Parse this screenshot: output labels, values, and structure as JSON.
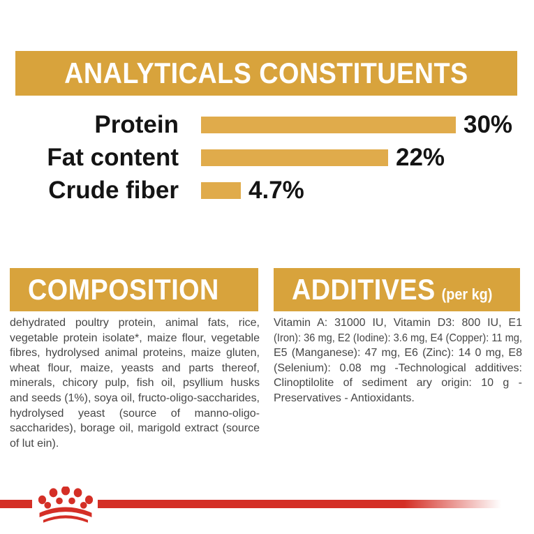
{
  "colors": {
    "banner_gold": "#D8A33C",
    "bar_gold": "#E0AB4B",
    "red": "#D42F26",
    "chart_text": "#141414",
    "body_text": "#454545",
    "banner_text": "#FFFFFF"
  },
  "header": {
    "title": "ANALYTICALS CONSTITUENTS"
  },
  "chart_data": {
    "type": "bar",
    "orientation": "horizontal",
    "title": "ANALYTICALS CONSTITUENTS",
    "categories": [
      "Protein",
      "Fat content",
      "Crude fiber"
    ],
    "values": [
      30,
      22,
      4.7
    ],
    "value_labels": [
      "30%",
      "22%",
      "4.7%"
    ],
    "unit": "%",
    "xlim": [
      0,
      30
    ],
    "grid": false,
    "legend": false,
    "bar_color": "#E0AB4B"
  },
  "composition": {
    "title": "COMPOSITION",
    "lines": [
      "dehydrated poultry protein, animal fats, rice,",
      "vegetable protein isolate*, maize flour, vegetable",
      "fibres, hydrolysed animal proteins, maize gluten,",
      "wheat flour, maize, yeasts and parts thereof,",
      "minerals, chicory pulp, fish oil, psyllium husks",
      "and seeds (1%), soya oil, fructo-oligo-saccharides,",
      "hydrolysed yeast (source of manno-oligo-",
      "saccharides), borage oil, marigold extract (source",
      "of lut ein)."
    ]
  },
  "additives": {
    "title": "ADDITIVES",
    "title_suffix": "(per kg)",
    "lines": [
      "Vitamin A: 31000 IU, Vitamin D3: 800 IU, E1",
      "(Iron): 36 mg, E2 (Iodine): 3.6 mg, E4 (Copper): 11 mg,",
      "E5 (Manganese): 47 mg, E6 (Zinc): 14 0 mg, E8",
      "(Selenium): 0.08 mg -Technological additives:",
      "Clinoptilolite of sediment ary origin: 10 g -",
      "Preservatives - Antioxidants."
    ]
  },
  "footer": {
    "logo_icon": "royal-canin-crown-icon"
  }
}
